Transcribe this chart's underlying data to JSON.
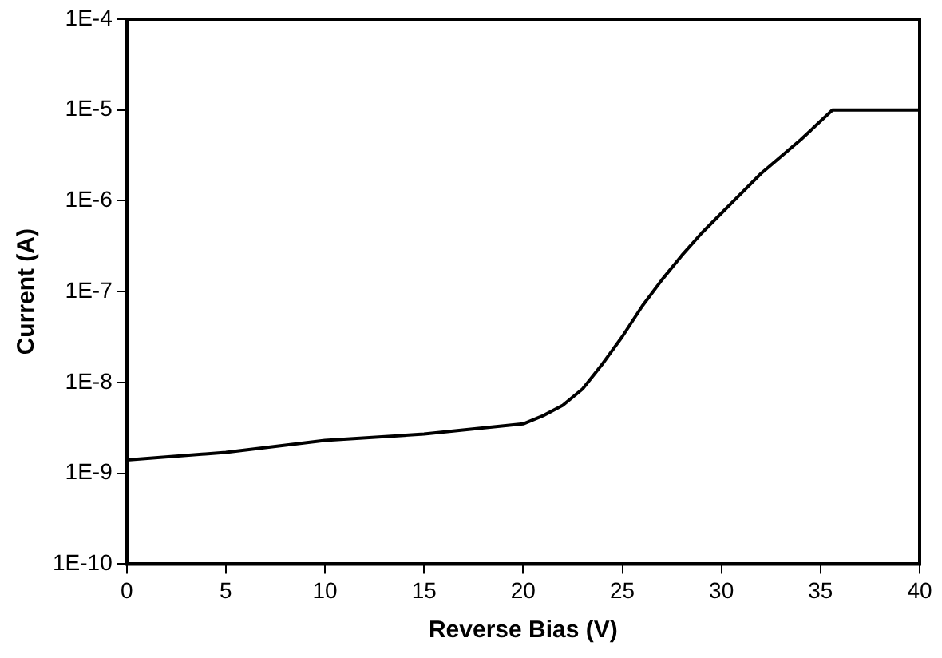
{
  "chart_data": {
    "type": "line",
    "xlabel": "Reverse Bias (V)",
    "ylabel": "Current (A)",
    "log": "y",
    "grid": false,
    "legend": false,
    "marker": "none",
    "line_style": "solid",
    "xlim": [
      0,
      40
    ],
    "xticks": [
      0,
      5,
      10,
      15,
      20,
      25,
      30,
      35,
      40
    ],
    "ylim": [
      1e-10,
      0.0001
    ],
    "yticks": [
      {
        "value": 1e-10,
        "label": "1E-10"
      },
      {
        "value": 1e-09,
        "label": "1E-9"
      },
      {
        "value": 1e-08,
        "label": "1E-8"
      },
      {
        "value": 1e-07,
        "label": "1E-7"
      },
      {
        "value": 1e-06,
        "label": "1E-6"
      },
      {
        "value": 1e-05,
        "label": "1E-5"
      },
      {
        "value": 0.0001,
        "label": "1E-4"
      }
    ],
    "series": [
      {
        "color": "#000000",
        "x": [
          0,
          5,
          10,
          15,
          20,
          21,
          22,
          23,
          24,
          25,
          26,
          27,
          28,
          29,
          30,
          32,
          34,
          35.6,
          40
        ],
        "values": [
          1.4e-09,
          1.7e-09,
          2.3e-09,
          2.7e-09,
          3.5e-09,
          4.3e-09,
          5.6e-09,
          8.5e-09,
          1.6e-08,
          3.2e-08,
          6.9e-08,
          1.35e-07,
          2.5e-07,
          4.4e-07,
          7.3e-07,
          2e-06,
          4.7e-06,
          1e-05,
          1e-05
        ]
      }
    ]
  }
}
